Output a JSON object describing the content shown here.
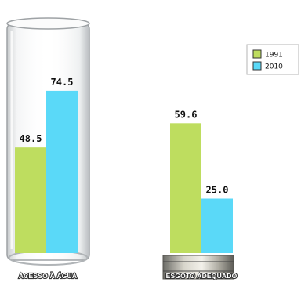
{
  "chart_data": {
    "type": "bar",
    "categories": [
      "ACESSO À ÁGUA",
      "ESGOTO ADEQUADO"
    ],
    "series": [
      {
        "name": "1991",
        "values": [
          48.5,
          59.6
        ],
        "labels": [
          "48.5",
          "59.6"
        ],
        "color": "#bedd5f"
      },
      {
        "name": "2010",
        "values": [
          74.5,
          25.0
        ],
        "labels": [
          "74.5",
          "25.0"
        ],
        "color": "#5ad9f8"
      }
    ],
    "ylim": [
      0,
      100
    ],
    "grid": false,
    "legend": "top-right",
    "title": "",
    "xlabel": "",
    "ylabel": ""
  }
}
